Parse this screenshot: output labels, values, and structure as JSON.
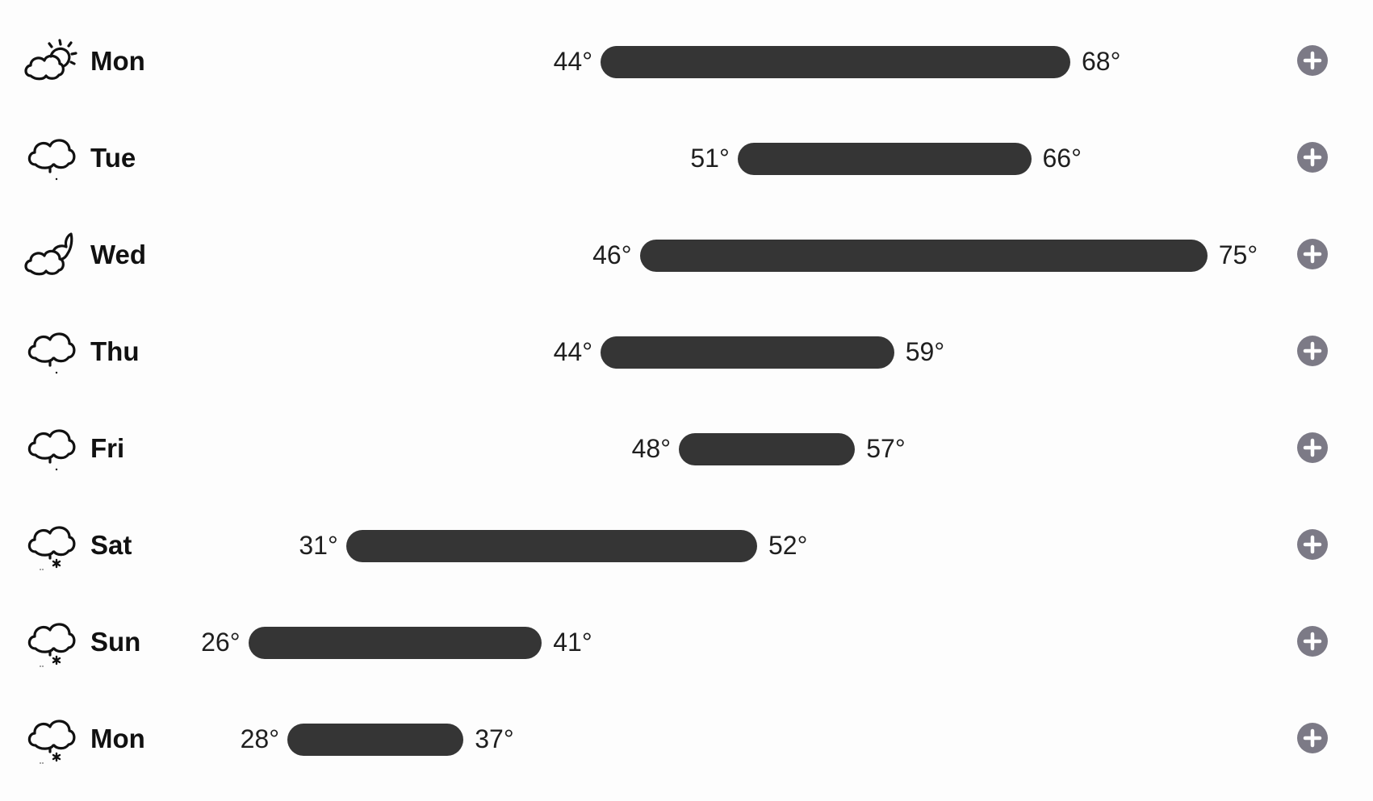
{
  "forecast": {
    "scale": {
      "min": 20,
      "max": 80
    },
    "days": [
      {
        "day": "Mon",
        "low": 44,
        "high": 68,
        "low_label": "44°",
        "high_label": "68°",
        "icon": "partly-sunny-icon"
      },
      {
        "day": "Tue",
        "low": 51,
        "high": 66,
        "low_label": "51°",
        "high_label": "66°",
        "icon": "drizzle-icon"
      },
      {
        "day": "Wed",
        "low": 46,
        "high": 75,
        "low_label": "46°",
        "high_label": "75°",
        "icon": "partly-cloudy-night-icon"
      },
      {
        "day": "Thu",
        "low": 44,
        "high": 59,
        "low_label": "44°",
        "high_label": "59°",
        "icon": "drizzle-icon"
      },
      {
        "day": "Fri",
        "low": 48,
        "high": 57,
        "low_label": "48°",
        "high_label": "57°",
        "icon": "drizzle-icon"
      },
      {
        "day": "Sat",
        "low": 31,
        "high": 52,
        "low_label": "31°",
        "high_label": "52°",
        "icon": "snow-icon"
      },
      {
        "day": "Sun",
        "low": 26,
        "high": 41,
        "low_label": "26°",
        "high_label": "41°",
        "icon": "snow-icon"
      },
      {
        "day": "Mon",
        "low": 28,
        "high": 37,
        "low_label": "28°",
        "high_label": "37°",
        "icon": "snow-icon"
      }
    ]
  },
  "colors": {
    "bar": "#353535",
    "expand_button": "#7c7a86",
    "background": "#fdfdfd"
  }
}
